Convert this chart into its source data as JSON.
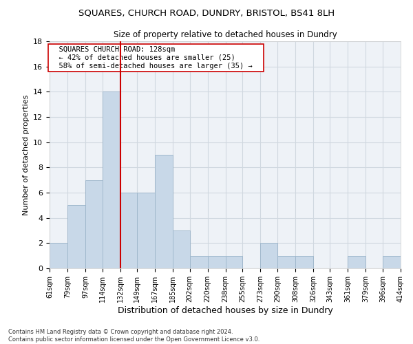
{
  "title_line1": "SQUARES, CHURCH ROAD, DUNDRY, BRISTOL, BS41 8LH",
  "title_line2": "Size of property relative to detached houses in Dundry",
  "xlabel": "Distribution of detached houses by size in Dundry",
  "ylabel": "Number of detached properties",
  "bin_labels": [
    "61sqm",
    "79sqm",
    "97sqm",
    "114sqm",
    "132sqm",
    "149sqm",
    "167sqm",
    "185sqm",
    "202sqm",
    "220sqm",
    "238sqm",
    "255sqm",
    "273sqm",
    "290sqm",
    "308sqm",
    "326sqm",
    "343sqm",
    "361sqm",
    "379sqm",
    "396sqm",
    "414sqm"
  ],
  "bin_edges": [
    61,
    79,
    97,
    114,
    132,
    149,
    167,
    185,
    202,
    220,
    238,
    255,
    273,
    290,
    308,
    326,
    343,
    361,
    379,
    396,
    414
  ],
  "bar_values": [
    2,
    5,
    7,
    14,
    6,
    6,
    9,
    3,
    1,
    1,
    1,
    0,
    2,
    1,
    1,
    0,
    0,
    1,
    0,
    1
  ],
  "bar_color": "#c8d8e8",
  "bar_edge_color": "#a0b8cc",
  "vline_x": 132,
  "vline_color": "#cc0000",
  "annotation_text": "  SQUARES CHURCH ROAD: 128sqm  \n  ← 42% of detached houses are smaller (25)  \n  58% of semi-detached houses are larger (35) →  ",
  "annotation_box_color": "#ffffff",
  "annotation_box_edge": "#cc0000",
  "ylim": [
    0,
    18
  ],
  "yticks": [
    0,
    2,
    4,
    6,
    8,
    10,
    12,
    14,
    16,
    18
  ],
  "grid_color": "#d0d8e0",
  "bg_color": "#eef2f7",
  "footer": "Contains HM Land Registry data © Crown copyright and database right 2024.\nContains public sector information licensed under the Open Government Licence v3.0."
}
